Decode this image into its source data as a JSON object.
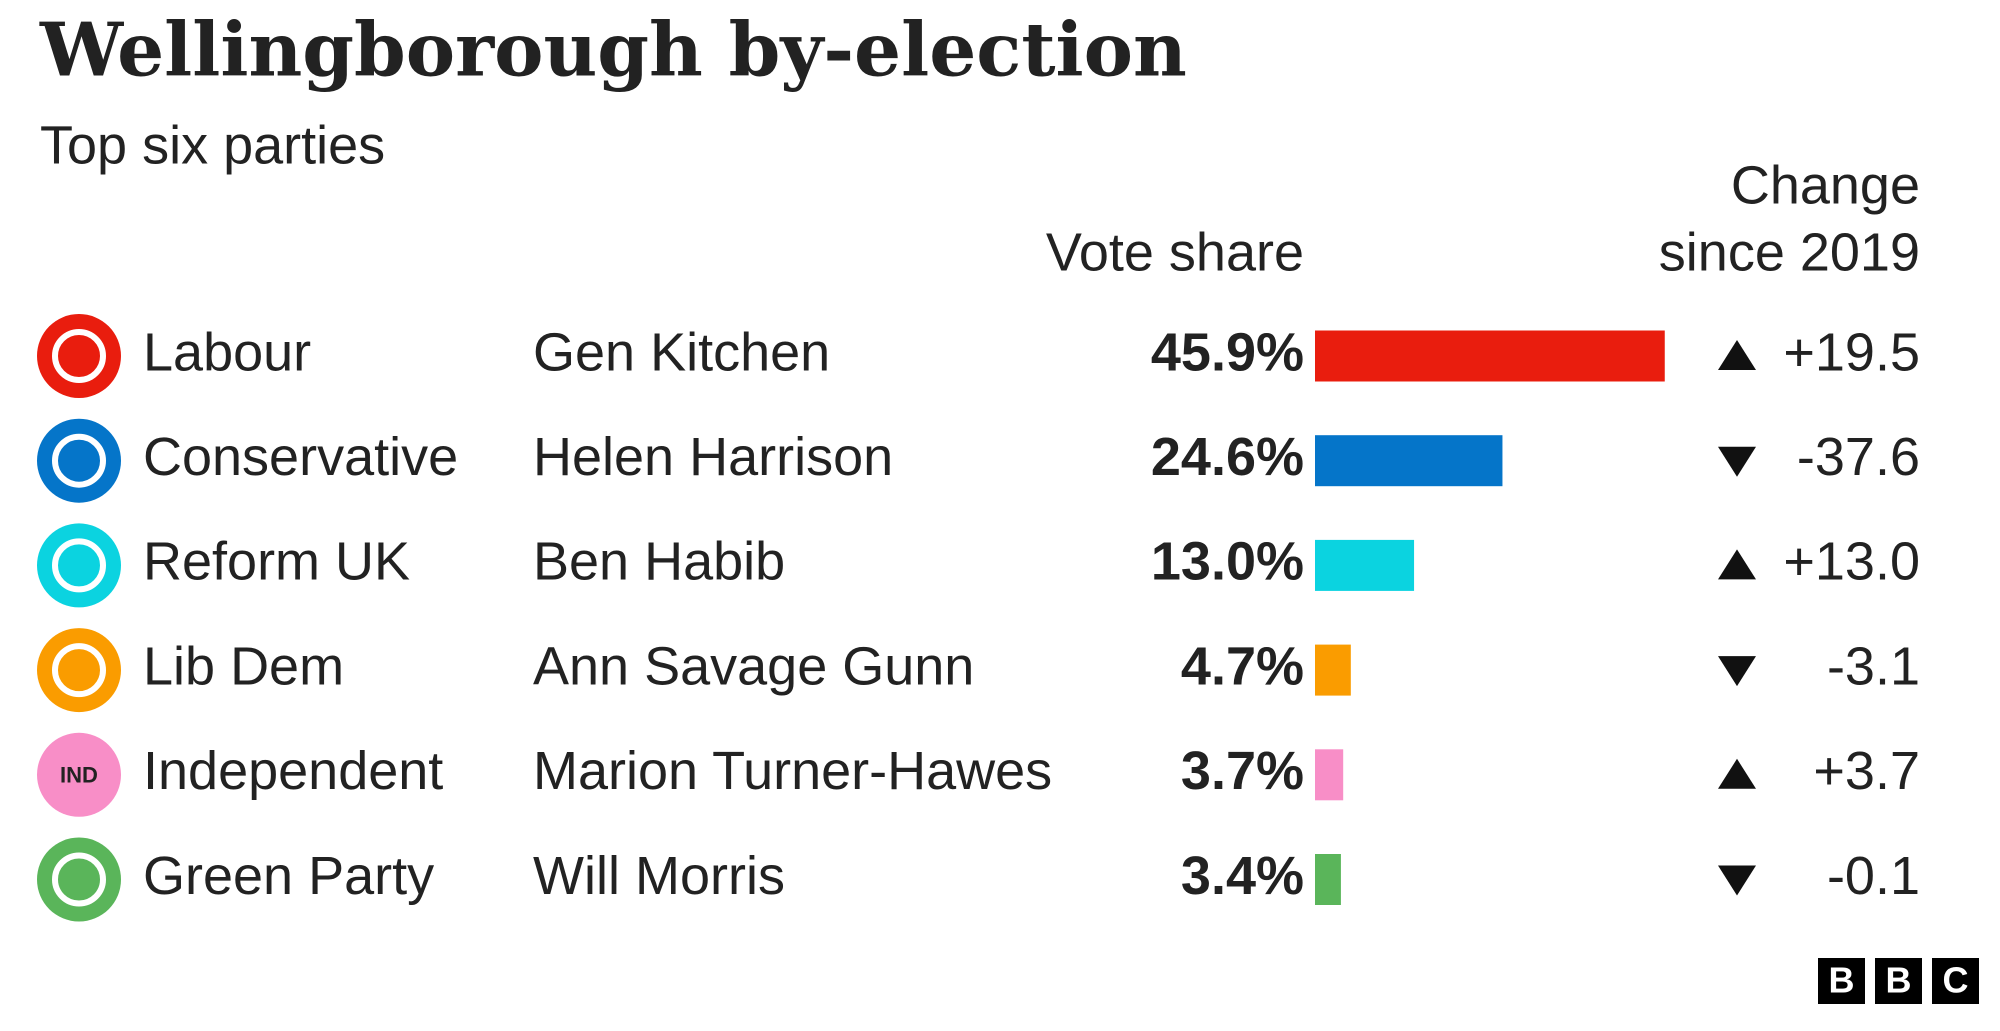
{
  "chart_data": {
    "type": "bar",
    "title": "Wellingborough by-election",
    "subtitle": "Top six parties",
    "value_header": "Vote share",
    "change_header": [
      "Change",
      "since 2019"
    ],
    "categories": [
      "Labour",
      "Conservative",
      "Reform UK",
      "Lib Dem",
      "Independent",
      "Green Party"
    ],
    "candidates": [
      "Gen Kitchen",
      "Helen Harrison",
      "Ben Habib",
      "Ann Savage Gunn",
      "Marion Turner-Hawes",
      "Will Morris"
    ],
    "icon_text": [
      null,
      null,
      null,
      null,
      "IND",
      null
    ],
    "values": [
      45.9,
      24.6,
      13.0,
      4.7,
      3.7,
      3.4
    ],
    "value_labels": [
      "45.9%",
      "24.6%",
      "13.0%",
      "4.7%",
      "3.7%",
      "3.4%"
    ],
    "colors": [
      "#e91d0e",
      "#0575c9",
      "#0bd3e0",
      "#fa9c00",
      "#f88ec7",
      "#5ab55a"
    ],
    "change": [
      19.5,
      -37.6,
      13.0,
      -3.1,
      3.7,
      -0.1
    ],
    "change_labels": [
      "+19.5",
      "-37.6",
      "+13.0",
      "-3.1",
      "+3.7",
      "-0.1"
    ],
    "logo": [
      "B",
      "B",
      "C"
    ]
  }
}
